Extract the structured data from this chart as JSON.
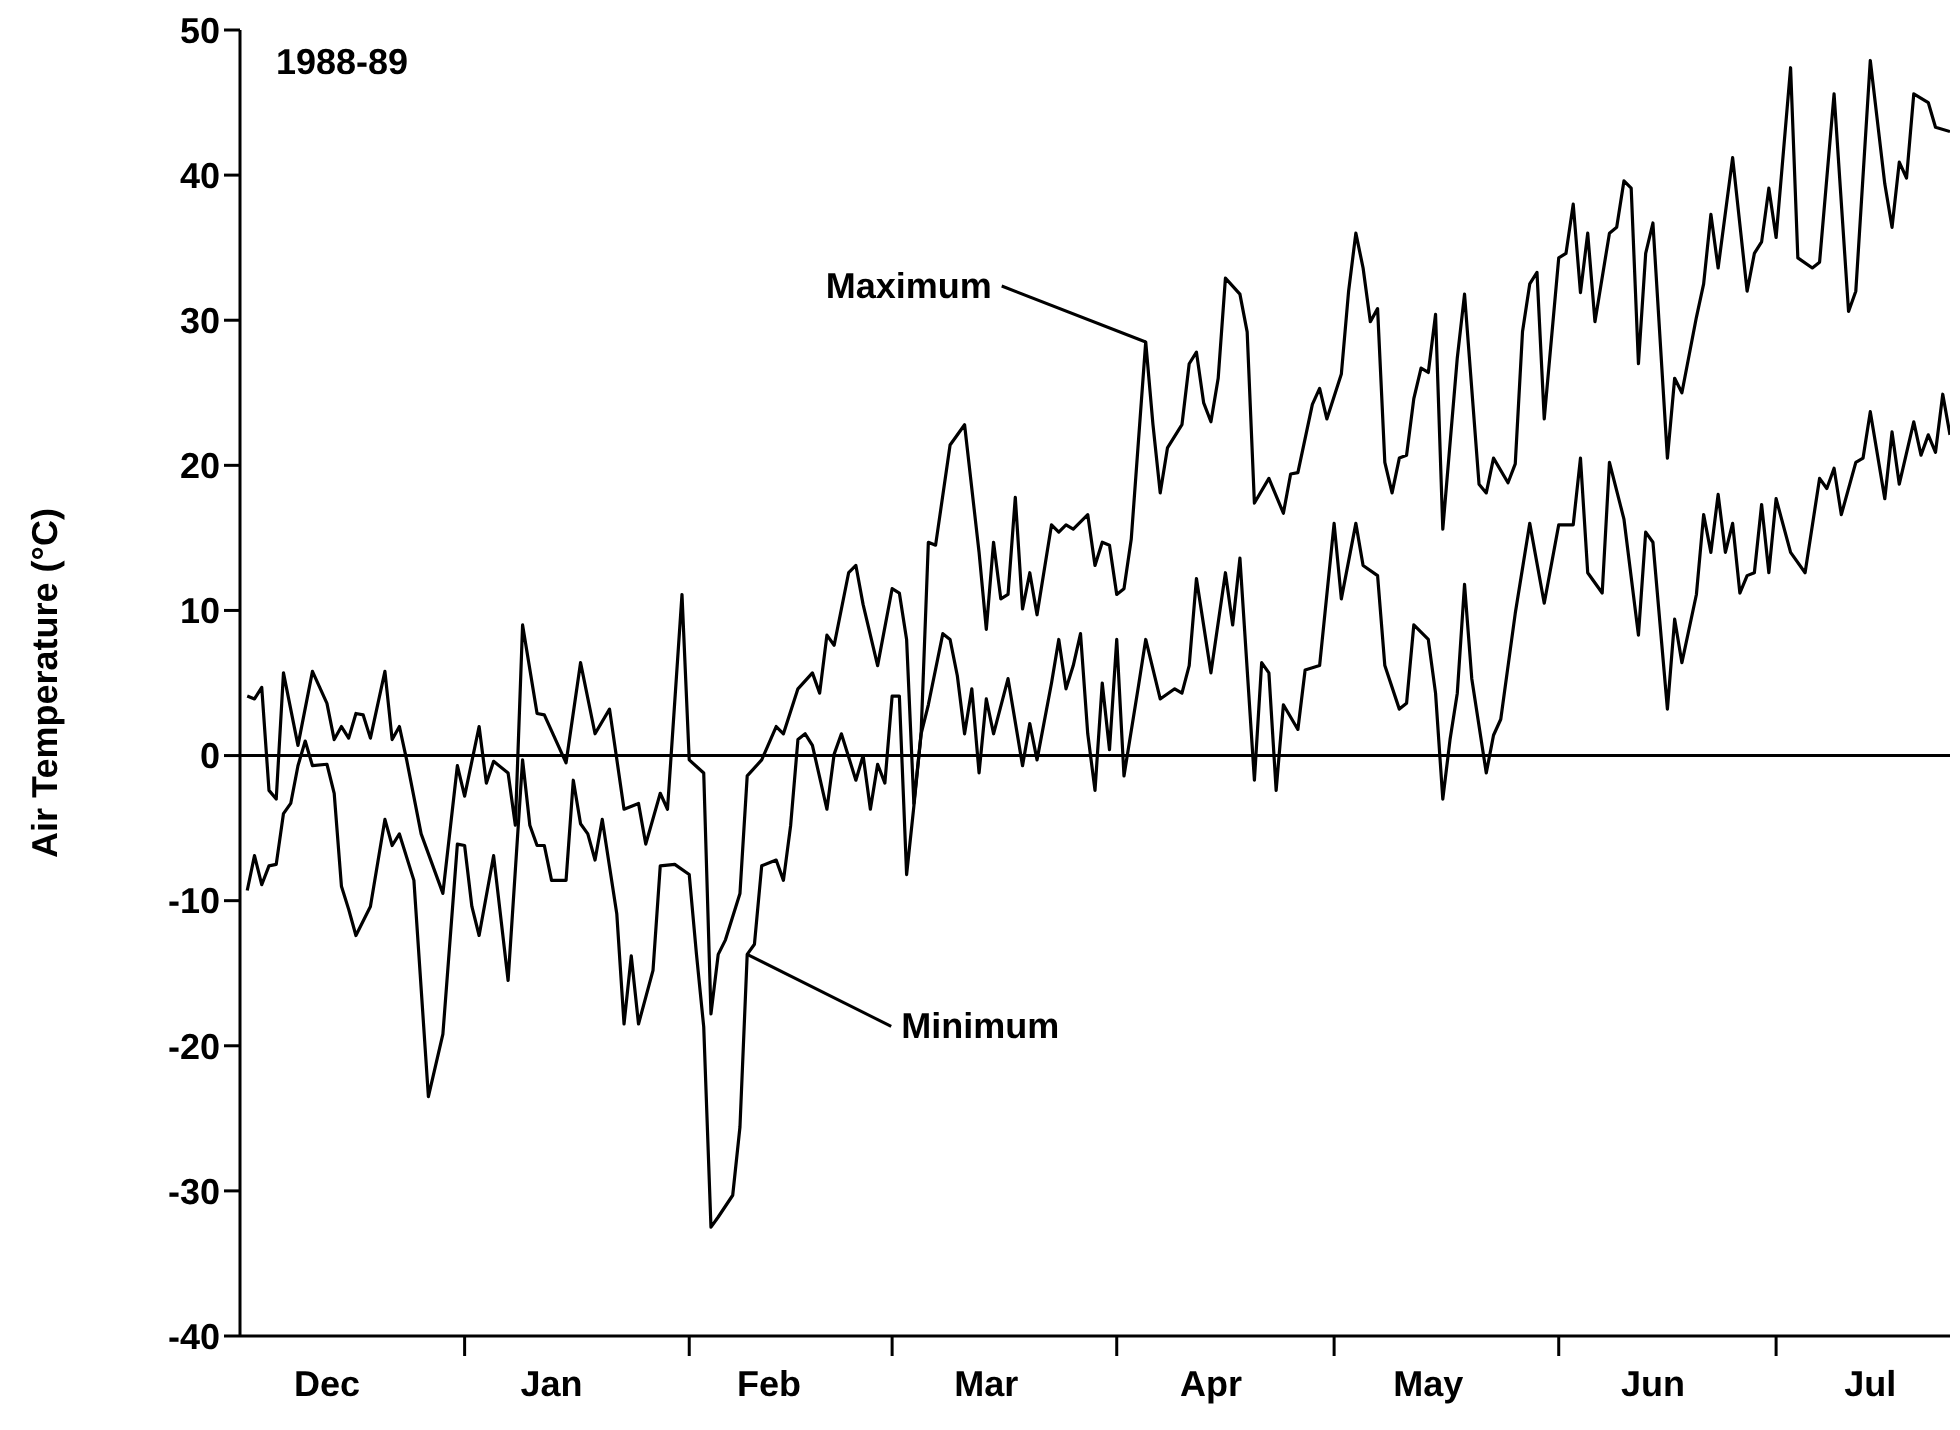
{
  "chart_data": {
    "type": "line",
    "ylabel": "Air Temperature (°C)",
    "xlim": [
      "1988-12-01",
      "1989-07-25"
    ],
    "ylim": [
      -40,
      50
    ],
    "yticks": [
      -40,
      -30,
      -20,
      -10,
      0,
      10,
      20,
      30,
      40,
      50
    ],
    "xticks": [
      {
        "value": "1988-12-13",
        "label": "Dec"
      },
      {
        "value": "1989-01-01",
        "label": null
      },
      {
        "value": "1989-01-13",
        "label": "Jan"
      },
      {
        "value": "1989-02-01",
        "label": null
      },
      {
        "value": "1989-02-12",
        "label": "Feb"
      },
      {
        "value": "1989-03-01",
        "label": null
      },
      {
        "value": "1989-03-14",
        "label": "Mar"
      },
      {
        "value": "1989-04-01",
        "label": null
      },
      {
        "value": "1989-04-14",
        "label": "Apr"
      },
      {
        "value": "1989-05-01",
        "label": null
      },
      {
        "value": "1989-05-14",
        "label": "May"
      },
      {
        "value": "1989-06-01",
        "label": null
      },
      {
        "value": "1989-06-14",
        "label": "Jun"
      },
      {
        "value": "1989-07-01",
        "label": null
      },
      {
        "value": "1989-07-14",
        "label": "Jul"
      }
    ],
    "marker": "none",
    "line_style": "solid",
    "ref_lines": [
      {
        "axis": "y",
        "value": 0,
        "color": "#000000"
      }
    ],
    "annotations": [
      "1988-89",
      {
        "text": "Maximum",
        "x": "1989-04-05",
        "y": 28.5
      },
      {
        "text": "Minimum",
        "x": "1989-02-09",
        "y": -13.7
      }
    ],
    "series": [
      {
        "color": "#000000",
        "x": [
          "1988-12-02",
          "1988-12-03",
          "1988-12-04",
          "1988-12-05",
          "1988-12-06",
          "1988-12-07",
          "1988-12-09",
          "1988-12-11",
          "1988-12-13",
          "1988-12-14",
          "1988-12-15",
          "1988-12-16",
          "1988-12-17",
          "1988-12-18",
          "1988-12-19",
          "1988-12-21",
          "1988-12-22",
          "1988-12-23",
          "1988-12-24",
          "1988-12-26",
          "1988-12-29",
          "1988-12-31",
          "1989-01-01",
          "1989-01-03",
          "1989-01-04",
          "1989-01-05",
          "1989-01-07",
          "1989-01-08",
          "1989-01-09",
          "1989-01-11",
          "1989-01-12",
          "1989-01-15",
          "1989-01-17",
          "1989-01-19",
          "1989-01-21",
          "1989-01-23",
          "1989-01-25",
          "1989-01-26",
          "1989-01-28",
          "1989-01-29",
          "1989-01-31",
          "1989-02-01",
          "1989-02-03",
          "1989-02-04",
          "1989-02-05",
          "1989-02-06",
          "1989-02-08",
          "1989-02-09",
          "1989-02-11",
          "1989-02-13",
          "1989-02-14",
          "1989-02-16",
          "1989-02-18",
          "1989-02-19",
          "1989-02-20",
          "1989-02-21",
          "1989-02-23",
          "1989-02-24",
          "1989-02-25",
          "1989-02-27",
          "1989-03-01",
          "1989-03-02",
          "1989-03-03",
          "1989-03-04",
          "1989-03-05",
          "1989-03-06",
          "1989-03-07",
          "1989-03-09",
          "1989-03-11",
          "1989-03-13",
          "1989-03-14",
          "1989-03-15",
          "1989-03-16",
          "1989-03-17",
          "1989-03-18",
          "1989-03-19",
          "1989-03-20",
          "1989-03-21",
          "1989-03-23",
          "1989-03-24",
          "1989-03-25",
          "1989-03-26",
          "1989-03-28",
          "1989-03-29",
          "1989-03-30",
          "1989-03-31",
          "1989-04-01",
          "1989-04-02",
          "1989-04-03",
          "1989-04-05",
          "1989-04-06",
          "1989-04-07",
          "1989-04-08",
          "1989-04-10",
          "1989-04-11",
          "1989-04-12",
          "1989-04-13",
          "1989-04-14",
          "1989-04-15",
          "1989-04-16",
          "1989-04-18",
          "1989-04-19",
          "1989-04-20",
          "1989-04-22",
          "1989-04-24",
          "1989-04-25",
          "1989-04-26",
          "1989-04-28",
          "1989-04-29",
          "1989-04-30",
          "1989-05-02",
          "1989-05-03",
          "1989-05-04",
          "1989-05-05",
          "1989-05-06",
          "1989-05-07",
          "1989-05-08",
          "1989-05-09",
          "1989-05-10",
          "1989-05-11",
          "1989-05-12",
          "1989-05-13",
          "1989-05-14",
          "1989-05-15",
          "1989-05-16",
          "1989-05-18",
          "1989-05-19",
          "1989-05-21",
          "1989-05-22",
          "1989-05-23",
          "1989-05-25",
          "1989-05-26",
          "1989-05-27",
          "1989-05-28",
          "1989-05-29",
          "1989-05-30",
          "1989-06-01",
          "1989-06-02",
          "1989-06-03",
          "1989-06-04",
          "1989-06-05",
          "1989-06-06",
          "1989-06-08",
          "1989-06-09",
          "1989-06-10",
          "1989-06-11",
          "1989-06-12",
          "1989-06-13",
          "1989-06-14",
          "1989-06-16",
          "1989-06-17",
          "1989-06-18",
          "1989-06-20",
          "1989-06-21",
          "1989-06-22",
          "1989-06-23",
          "1989-06-25",
          "1989-06-27",
          "1989-06-28",
          "1989-06-29",
          "1989-06-30",
          "1989-07-01",
          "1989-07-03",
          "1989-07-04",
          "1989-07-06",
          "1989-07-07",
          "1989-07-09",
          "1989-07-11",
          "1989-07-12",
          "1989-07-14",
          "1989-07-16",
          "1989-07-17",
          "1989-07-18",
          "1989-07-19",
          "1989-07-20",
          "1989-07-22",
          "1989-07-23",
          "1989-07-25"
        ],
        "values": [
          4.1,
          3.9,
          4.7,
          -2.4,
          -3,
          5.7,
          0.7,
          5.8,
          3.6,
          1.1,
          2,
          1.2,
          2.9,
          2.8,
          1.2,
          5.8,
          1.1,
          2,
          -0.3,
          -5.4,
          -9.5,
          -0.7,
          -2.8,
          2,
          -1.9,
          -0.4,
          -1.2,
          -4.8,
          9,
          2.9,
          2.8,
          -0.5,
          6.4,
          1.5,
          3.2,
          -3.7,
          -3.3,
          -6.1,
          -2.6,
          -3.7,
          11.1,
          -0.3,
          -1.2,
          -17.8,
          -13.7,
          -12.7,
          -9.5,
          -1.4,
          -0.3,
          2,
          1.5,
          4.6,
          5.7,
          4.3,
          8.3,
          7.6,
          12.6,
          13.1,
          10.4,
          6.2,
          11.5,
          11.2,
          8,
          -3.3,
          1.5,
          14.7,
          14.5,
          21.4,
          22.8,
          14,
          8.7,
          14.7,
          10.8,
          11.1,
          17.8,
          10.1,
          12.6,
          9.7,
          15.9,
          15.4,
          15.9,
          15.6,
          16.6,
          13.1,
          14.7,
          14.5,
          11.1,
          11.5,
          14.9,
          28.5,
          22.8,
          18.1,
          21.2,
          22.8,
          27,
          27.8,
          24.3,
          23,
          26,
          32.9,
          31.8,
          29.2,
          17.4,
          19.1,
          16.7,
          19.4,
          19.5,
          24.2,
          25.3,
          23.2,
          26.3,
          32,
          36,
          33.6,
          29.9,
          30.8,
          20.2,
          18.1,
          20.5,
          20.7,
          24.6,
          26.7,
          26.4,
          30.4,
          15.6,
          27.4,
          31.8,
          18.7,
          18.1,
          20.5,
          18.8,
          20.1,
          29.2,
          32.5,
          33.3,
          23.2,
          34.3,
          34.6,
          38,
          31.9,
          36,
          29.9,
          36,
          36.4,
          39.6,
          39.1,
          27,
          34.6,
          36.7,
          20.5,
          26,
          25,
          30.2,
          32.5,
          37.3,
          33.6,
          41.2,
          32,
          34.6,
          35.4,
          39.1,
          35.7,
          47.4,
          34.3,
          33.6,
          34,
          45.6,
          30.6,
          32,
          47.9,
          39.4,
          36.4,
          40.9,
          39.8,
          45.6,
          45,
          43.3,
          43
        ]
      },
      {
        "color": "#000000",
        "x": [
          "1988-12-02",
          "1988-12-03",
          "1988-12-04",
          "1988-12-05",
          "1988-12-06",
          "1988-12-07",
          "1988-12-08",
          "1988-12-09",
          "1988-12-10",
          "1988-12-11",
          "1988-12-13",
          "1988-12-14",
          "1988-12-15",
          "1988-12-16",
          "1988-12-17",
          "1988-12-19",
          "1988-12-21",
          "1988-12-22",
          "1988-12-23",
          "1988-12-25",
          "1988-12-27",
          "1988-12-29",
          "1988-12-31",
          "1989-01-01",
          "1989-01-02",
          "1989-01-03",
          "1989-01-05",
          "1989-01-07",
          "1989-01-09",
          "1989-01-10",
          "1989-01-11",
          "1989-01-12",
          "1989-01-13",
          "1989-01-15",
          "1989-01-16",
          "1989-01-17",
          "1989-01-18",
          "1989-01-19",
          "1989-01-20",
          "1989-01-22",
          "1989-01-23",
          "1989-01-24",
          "1989-01-25",
          "1989-01-27",
          "1989-01-28",
          "1989-01-30",
          "1989-02-01",
          "1989-02-02",
          "1989-02-03",
          "1989-02-04",
          "1989-02-05",
          "1989-02-07",
          "1989-02-08",
          "1989-02-09",
          "1989-02-10",
          "1989-02-11",
          "1989-02-13",
          "1989-02-14",
          "1989-02-15",
          "1989-02-16",
          "1989-02-17",
          "1989-02-18",
          "1989-02-20",
          "1989-02-21",
          "1989-02-22",
          "1989-02-24",
          "1989-02-25",
          "1989-02-26",
          "1989-02-27",
          "1989-02-28",
          "1989-03-01",
          "1989-03-02",
          "1989-03-03",
          "1989-03-04",
          "1989-03-05",
          "1989-03-06",
          "1989-03-08",
          "1989-03-09",
          "1989-03-10",
          "1989-03-11",
          "1989-03-12",
          "1989-03-13",
          "1989-03-14",
          "1989-03-15",
          "1989-03-17",
          "1989-03-19",
          "1989-03-20",
          "1989-03-21",
          "1989-03-23",
          "1989-03-24",
          "1989-03-25",
          "1989-03-26",
          "1989-03-27",
          "1989-03-28",
          "1989-03-29",
          "1989-03-30",
          "1989-03-31",
          "1989-04-01",
          "1989-04-02",
          "1989-04-04",
          "1989-04-05",
          "1989-04-07",
          "1989-04-09",
          "1989-04-10",
          "1989-04-11",
          "1989-04-12",
          "1989-04-14",
          "1989-04-16",
          "1989-04-17",
          "1989-04-18",
          "1989-04-20",
          "1989-04-21",
          "1989-04-22",
          "1989-04-23",
          "1989-04-24",
          "1989-04-26",
          "1989-04-27",
          "1989-04-29",
          "1989-05-01",
          "1989-05-02",
          "1989-05-04",
          "1989-05-05",
          "1989-05-07",
          "1989-05-08",
          "1989-05-10",
          "1989-05-11",
          "1989-05-12",
          "1989-05-14",
          "1989-05-15",
          "1989-05-16",
          "1989-05-17",
          "1989-05-18",
          "1989-05-19",
          "1989-05-20",
          "1989-05-22",
          "1989-05-23",
          "1989-05-24",
          "1989-05-26",
          "1989-05-28",
          "1989-05-30",
          "1989-06-01",
          "1989-06-03",
          "1989-06-04",
          "1989-06-05",
          "1989-06-07",
          "1989-06-08",
          "1989-06-10",
          "1989-06-12",
          "1989-06-13",
          "1989-06-14",
          "1989-06-16",
          "1989-06-17",
          "1989-06-18",
          "1989-06-20",
          "1989-06-21",
          "1989-06-22",
          "1989-06-23",
          "1989-06-24",
          "1989-06-25",
          "1989-06-26",
          "1989-06-27",
          "1989-06-28",
          "1989-06-29",
          "1989-06-30",
          "1989-07-01",
          "1989-07-03",
          "1989-07-05",
          "1989-07-07",
          "1989-07-08",
          "1989-07-09",
          "1989-07-10",
          "1989-07-12",
          "1989-07-13",
          "1989-07-14",
          "1989-07-16",
          "1989-07-17",
          "1989-07-18",
          "1989-07-20",
          "1989-07-21",
          "1989-07-22",
          "1989-07-23",
          "1989-07-24",
          "1989-07-25"
        ],
        "values": [
          -9.3,
          -6.9,
          -8.9,
          -7.6,
          -7.5,
          -4,
          -3.3,
          -0.7,
          1,
          -0.7,
          -0.6,
          -2.6,
          -9,
          -10.6,
          -12.4,
          -10.4,
          -4.4,
          -6.2,
          -5.4,
          -8.6,
          -23.5,
          -19.2,
          -6.1,
          -6.2,
          -10.4,
          -12.4,
          -6.9,
          -15.5,
          -0.3,
          -4.8,
          -6.2,
          -6.2,
          -8.6,
          -8.6,
          -1.7,
          -4.7,
          -5.4,
          -7.2,
          -4.4,
          -10.9,
          -18.5,
          -13.8,
          -18.5,
          -14.8,
          -7.6,
          -7.5,
          -8.2,
          -13.7,
          -18.7,
          -32.5,
          -31.8,
          -30.3,
          -25.6,
          -13.7,
          -13,
          -7.6,
          -7.2,
          -8.6,
          -4.8,
          1.1,
          1.5,
          0.7,
          -3.7,
          0.1,
          1.5,
          -1.7,
          0,
          -3.7,
          -0.6,
          -1.9,
          4.1,
          4.1,
          -8.2,
          -3.5,
          1.5,
          3.5,
          8.4,
          8,
          5.5,
          1.5,
          4.6,
          -1.2,
          3.9,
          1.5,
          5.3,
          -0.7,
          2.2,
          -0.3,
          5,
          8,
          4.6,
          6.2,
          8.4,
          1.5,
          -2.4,
          5,
          0.4,
          8,
          -1.4,
          4.8,
          8,
          3.9,
          4.6,
          4.3,
          6.2,
          12.2,
          5.7,
          12.6,
          9,
          13.6,
          -1.7,
          6.4,
          5.7,
          -2.4,
          3.5,
          1.8,
          5.9,
          6.2,
          16,
          10.8,
          16,
          13.1,
          12.4,
          6.2,
          3.2,
          3.6,
          9,
          8,
          4.3,
          -3,
          1.1,
          4.3,
          11.8,
          5.3,
          -1.2,
          1.4,
          2.5,
          9.8,
          16,
          10.5,
          15.9,
          15.9,
          20.5,
          12.6,
          11.2,
          20.2,
          16.3,
          8.3,
          15.4,
          14.7,
          3.2,
          9.4,
          6.4,
          11.1,
          16.6,
          14,
          18,
          14,
          16,
          11.2,
          12.4,
          12.6,
          17.3,
          12.6,
          17.7,
          14,
          12.6,
          19.1,
          18.4,
          19.8,
          16.6,
          20.2,
          20.5,
          23.7,
          17.7,
          22.3,
          18.7,
          23,
          20.7,
          22.1,
          20.9,
          24.9,
          22.1
        ]
      }
    ]
  }
}
